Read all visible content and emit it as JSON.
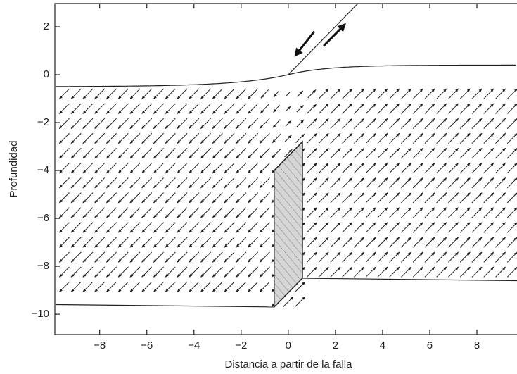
{
  "axes": {
    "xlabel": "Distancia a partir de la falla",
    "ylabel": "Profundidad",
    "xlim": [
      -9.9,
      9.7
    ],
    "ylim": [
      -10.85,
      2.97
    ],
    "xticks": [
      {
        "value": -8,
        "label": "−8"
      },
      {
        "value": -6,
        "label": "−6"
      },
      {
        "value": -4,
        "label": "−4"
      },
      {
        "value": -2,
        "label": "−2"
      },
      0,
      2,
      4,
      6,
      8
    ],
    "yticks": [
      2,
      0,
      {
        "value": -2,
        "label": "−2"
      },
      {
        "value": -4,
        "label": "−4"
      },
      {
        "value": -6,
        "label": "−6"
      },
      {
        "value": -8,
        "label": "−8"
      },
      {
        "value": -10,
        "label": "−10"
      }
    ]
  }
}
